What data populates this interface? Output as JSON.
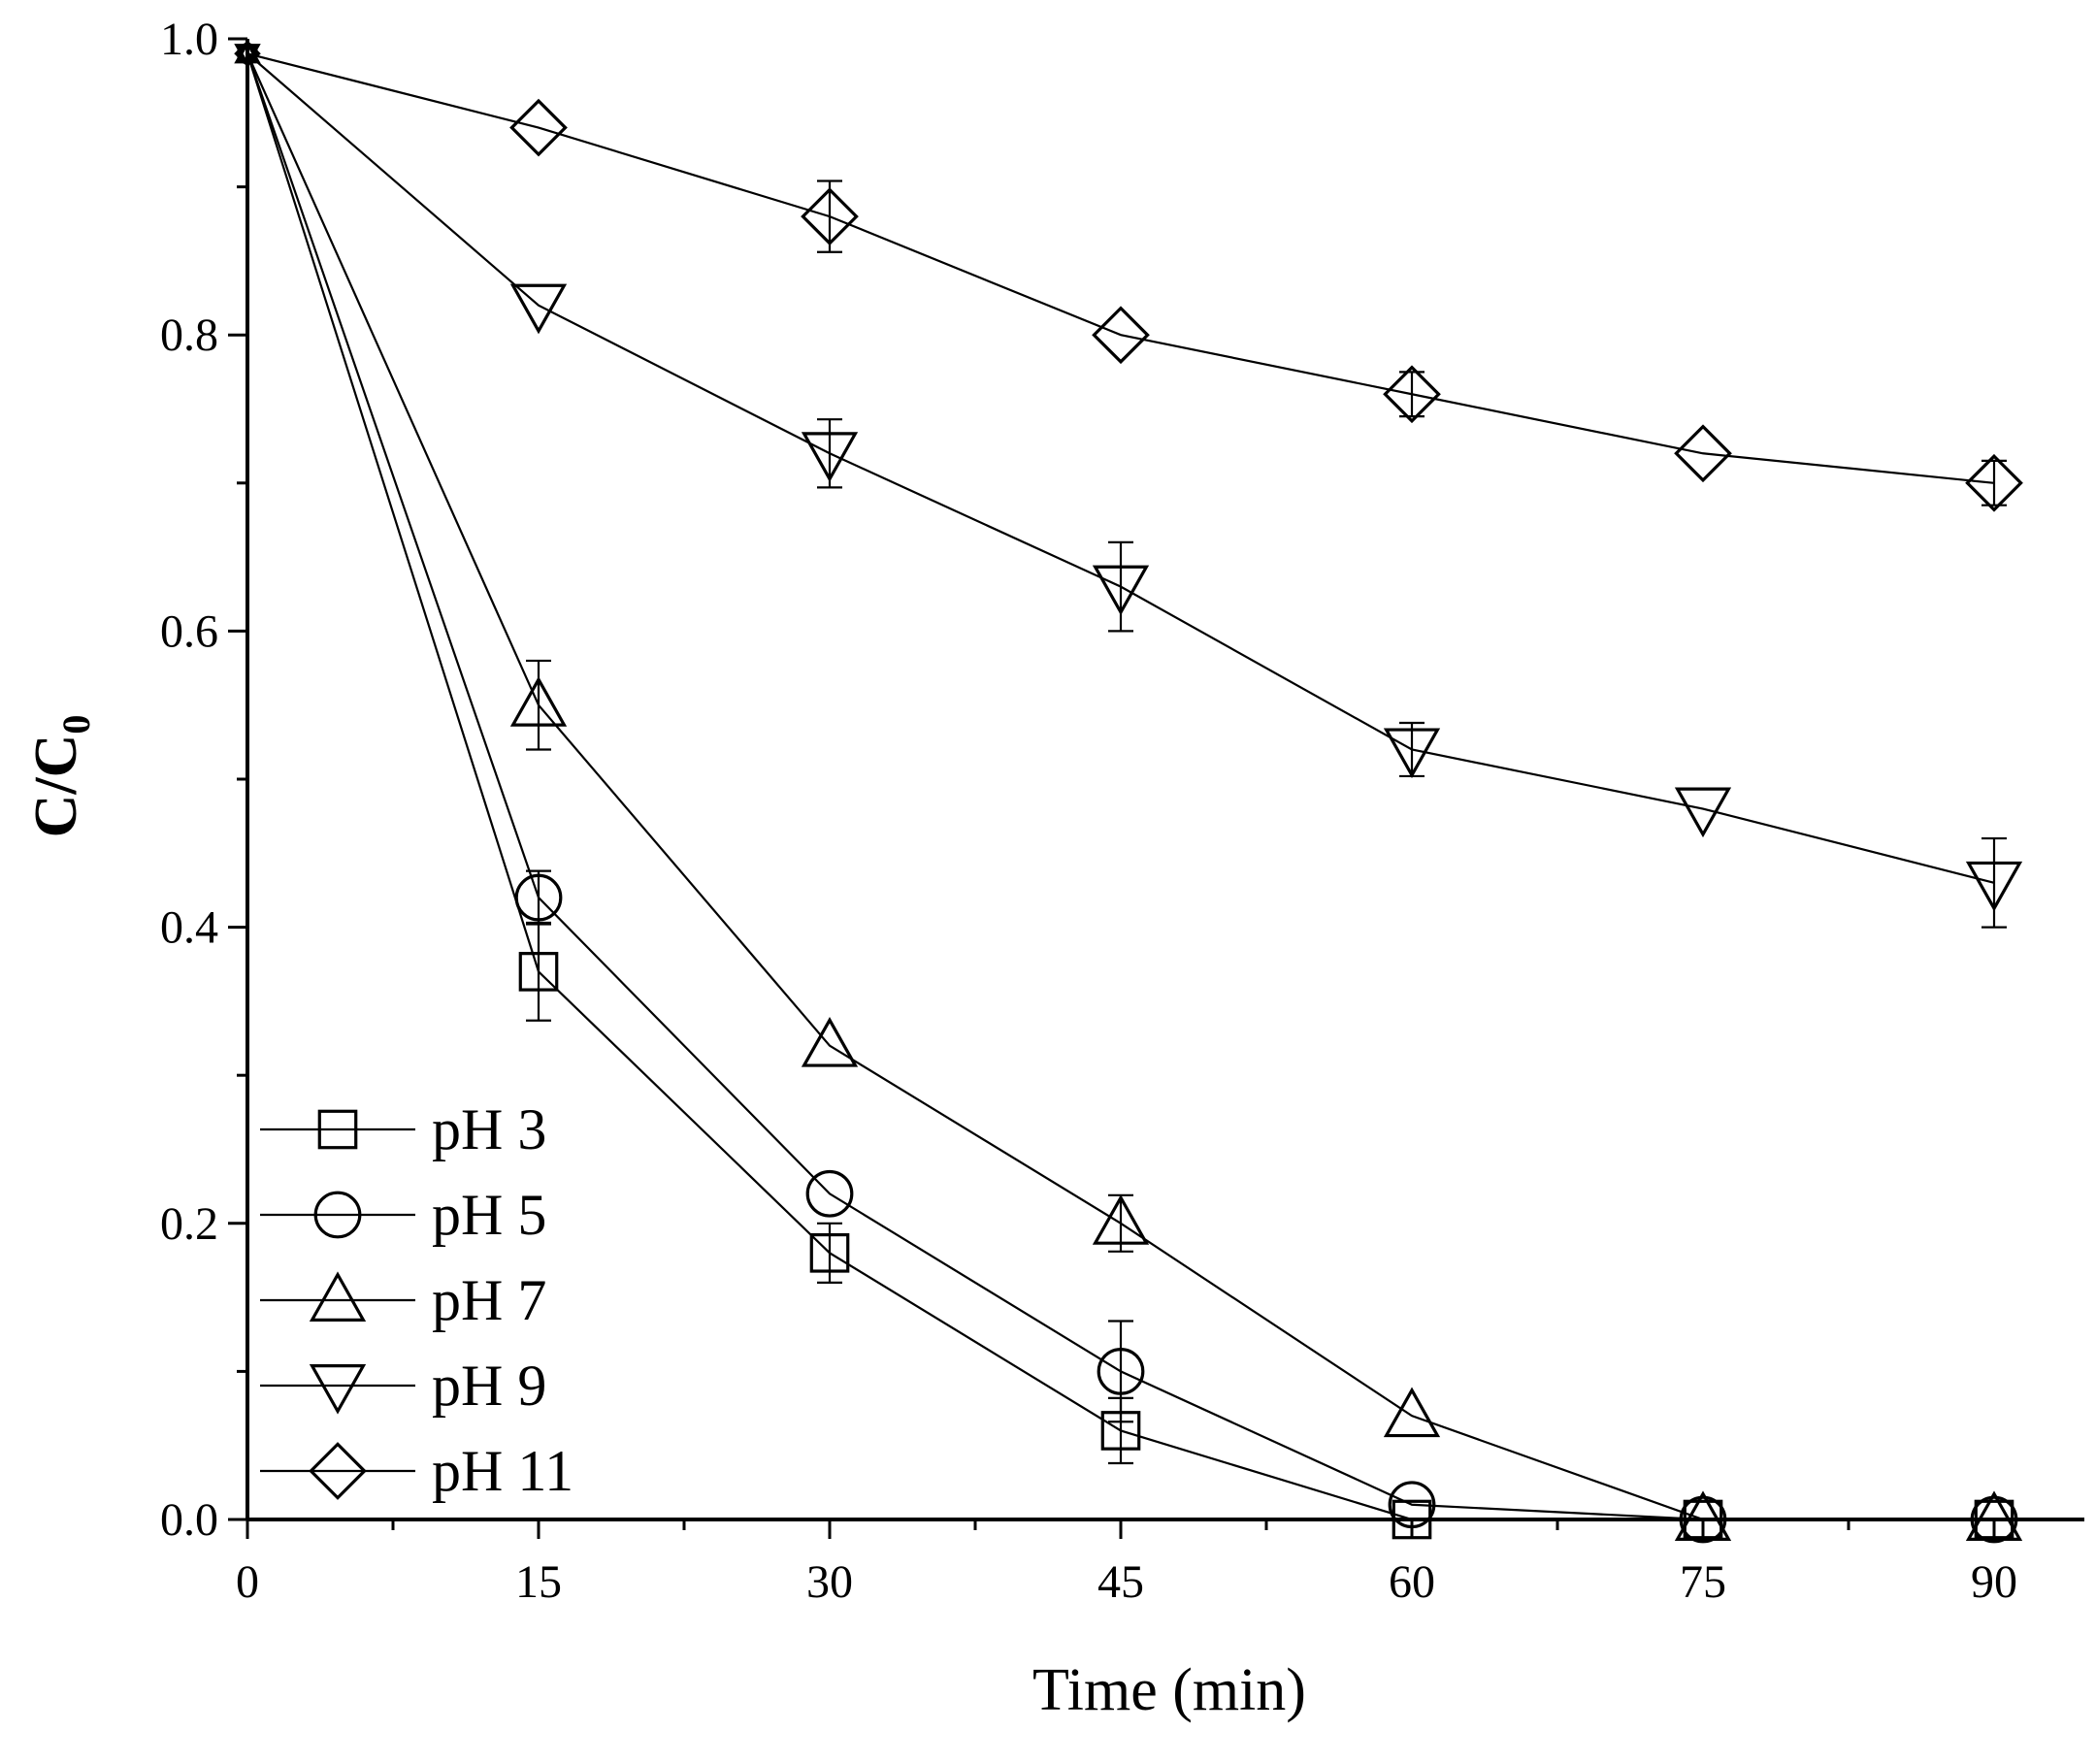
{
  "chart_data": {
    "type": "line",
    "xlabel": "Time (min)",
    "ylabel_main": "C/C",
    "ylabel_sub": "0",
    "xlim": [
      0,
      97
    ],
    "ylim": [
      0,
      1.0
    ],
    "x_ticks": [
      0,
      15,
      30,
      45,
      60,
      75,
      90
    ],
    "x_tick_labels": [
      "0",
      "15",
      "30",
      "45",
      "60",
      "75",
      "90"
    ],
    "y_ticks": [
      0.0,
      0.2,
      0.4,
      0.6,
      0.8,
      1.0
    ],
    "y_tick_labels": [
      "0.0",
      "0.2",
      "0.4",
      "0.6",
      "0.8",
      "1.0"
    ],
    "legend_position": "bottom-left",
    "x": [
      0,
      15,
      30,
      45,
      60,
      75,
      90
    ],
    "series": [
      {
        "name": "pH 3",
        "marker": "square",
        "values": [
          0.99,
          0.37,
          0.18,
          0.06,
          0.0,
          0.0,
          0.0
        ],
        "errors": [
          0.0,
          0.033,
          0.02,
          0.022,
          0.0,
          0.0,
          0.0
        ]
      },
      {
        "name": "pH 5",
        "marker": "circle",
        "values": [
          0.99,
          0.42,
          0.22,
          0.1,
          0.01,
          0.0,
          0.0
        ],
        "errors": [
          0.0,
          0.018,
          0.0,
          0.034,
          0.0,
          0.0,
          0.0
        ]
      },
      {
        "name": "pH 7",
        "marker": "triangle-up",
        "values": [
          0.99,
          0.55,
          0.32,
          0.2,
          0.07,
          0.0,
          0.0
        ],
        "errors": [
          0.0,
          0.03,
          0.0,
          0.019,
          0.0,
          0.0,
          0.0
        ]
      },
      {
        "name": "pH 9",
        "marker": "triangle-down",
        "values": [
          0.99,
          0.82,
          0.72,
          0.63,
          0.52,
          0.48,
          0.43
        ],
        "errors": [
          0.0,
          0.0,
          0.023,
          0.03,
          0.018,
          0.0,
          0.03
        ]
      },
      {
        "name": "pH 11",
        "marker": "diamond",
        "values": [
          0.99,
          0.94,
          0.88,
          0.8,
          0.76,
          0.72,
          0.7
        ],
        "errors": [
          0.0,
          0.0,
          0.024,
          0.0,
          0.015,
          0.0,
          0.015
        ]
      }
    ]
  }
}
